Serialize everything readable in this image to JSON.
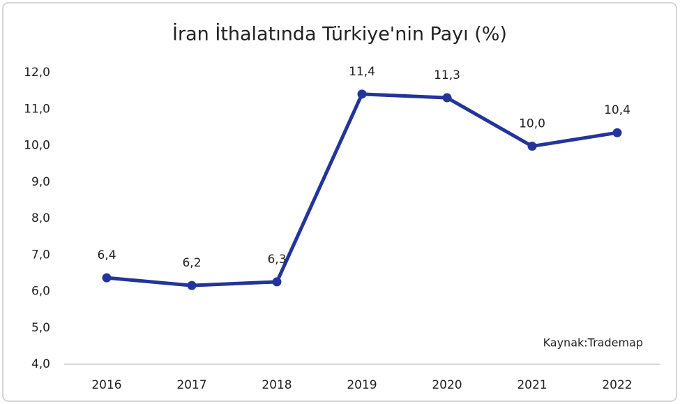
{
  "chart_data": {
    "type": "line",
    "title": "İran İthalatında Türkiye'nin Payı (%)",
    "categories": [
      "2016",
      "2017",
      "2018",
      "2019",
      "2020",
      "2021",
      "2022"
    ],
    "series": [
      {
        "name": "Türkiye'nin Payı",
        "color": "#23349a",
        "values": [
          6.37,
          6.16,
          6.26,
          11.41,
          11.31,
          9.98,
          10.35
        ],
        "value_labels": [
          "6,4",
          "6,2",
          "6,3",
          "11,4",
          "11,3",
          "10,0",
          "10,4"
        ]
      }
    ],
    "ylim": [
      4,
      12
    ],
    "yticks": [
      {
        "value": 4,
        "label": "4,0"
      },
      {
        "value": 5,
        "label": "5,0"
      },
      {
        "value": 6,
        "label": "6,0"
      },
      {
        "value": 7,
        "label": "7,0"
      },
      {
        "value": 8,
        "label": "8,0"
      },
      {
        "value": 9,
        "label": "9,0"
      },
      {
        "value": 10,
        "label": "10,0"
      },
      {
        "value": 11,
        "label": "11,0"
      },
      {
        "value": 12,
        "label": "12,0"
      }
    ],
    "grid": false,
    "annotation": "Kaynak:Trademap"
  }
}
